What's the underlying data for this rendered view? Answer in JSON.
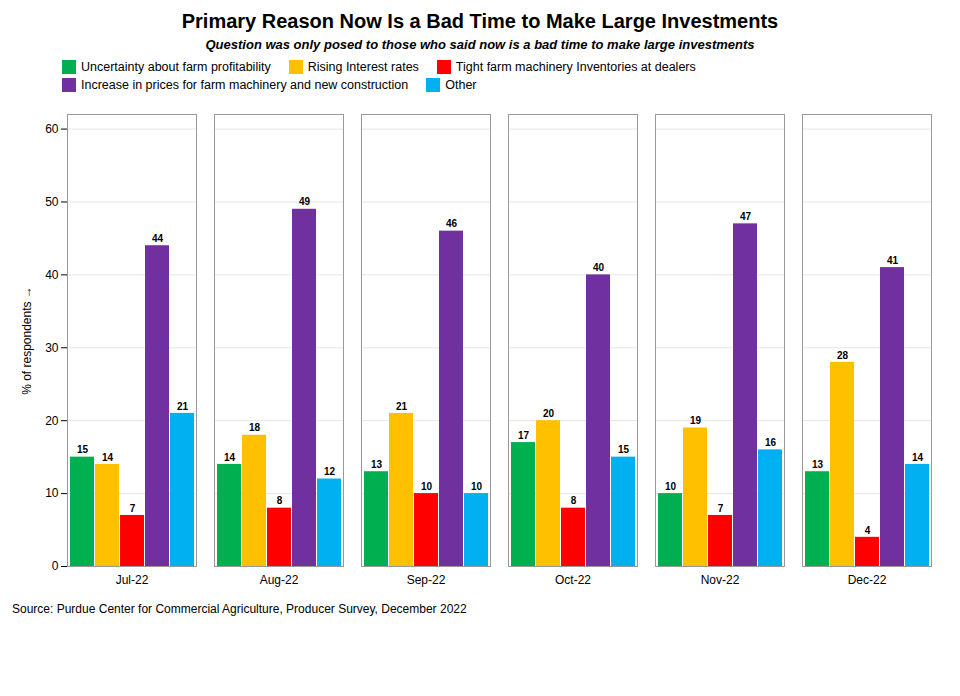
{
  "chart_data": {
    "type": "bar",
    "title": "Primary Reason Now Is a Bad Time to Make Large Investments",
    "subtitle": "Question was only posed to those who said now is a bad time to make large investments",
    "ylabel": "% of respondents",
    "source": "Source: Purdue Center for Commercial Agriculture, Producer Survey, December 2022",
    "categories": [
      "Jul-22",
      "Aug-22",
      "Sep-22",
      "Oct-22",
      "Nov-22",
      "Dec-22"
    ],
    "series": [
      {
        "name": "Uncertainty about farm profitability",
        "color": "#00B050",
        "values": [
          15,
          14,
          13,
          17,
          10,
          13
        ]
      },
      {
        "name": "Rising Interest rates",
        "color": "#FFC000",
        "values": [
          14,
          18,
          21,
          20,
          19,
          28
        ]
      },
      {
        "name": "Tight farm machinery Inventories at dealers",
        "color": "#FF0000",
        "values": [
          7,
          8,
          10,
          8,
          7,
          4
        ]
      },
      {
        "name": "Increase in prices for farm machinery and new construction",
        "color": "#7030A0",
        "values": [
          44,
          49,
          46,
          40,
          47,
          41
        ]
      },
      {
        "name": "Other",
        "color": "#00B0F0",
        "values": [
          21,
          12,
          10,
          15,
          16,
          14
        ]
      }
    ],
    "ylim": [
      0,
      62
    ],
    "yticks": [
      0,
      10,
      20,
      30,
      40,
      50,
      60
    ],
    "grid": true,
    "legend": "upper left",
    "data_labels": true
  }
}
